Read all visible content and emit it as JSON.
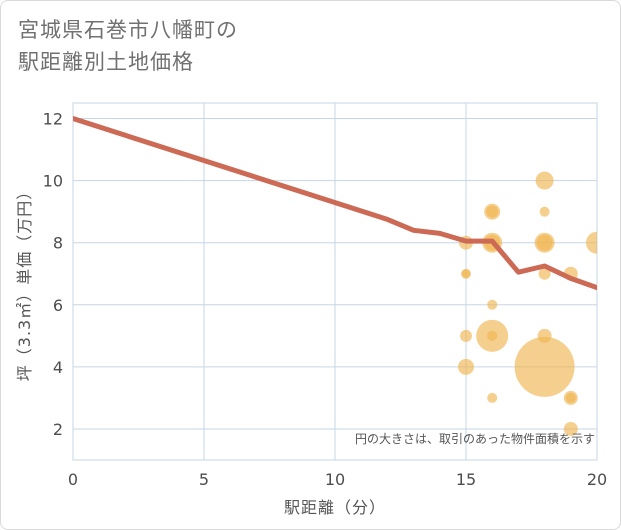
{
  "title_line1": "宮城県石巻市八幡町の",
  "title_line2": "駅距離別土地価格",
  "chart_data": {
    "type": "scatter",
    "xlabel": "駅距離（分）",
    "ylabel": "坪（3.3㎡）単価（万円）",
    "xlim": [
      0,
      20
    ],
    "ylim": [
      1,
      12.5
    ],
    "xticks": [
      0,
      5,
      10,
      15,
      20
    ],
    "yticks": [
      2,
      4,
      6,
      8,
      10,
      12
    ],
    "xtick_labels": [
      "0",
      "5",
      "10",
      "15",
      "20"
    ],
    "ytick_labels": [
      "2",
      "4",
      "6",
      "8",
      "10",
      "12"
    ],
    "annotation": "円の大きさは、取引のあった物件面積を示す",
    "colors": {
      "bubble": "#f0b552",
      "line": "#cc6a55",
      "grid": "#c6d6e4",
      "axis_text": "#4d4d4d"
    },
    "trend_line": {
      "x": [
        0,
        12,
        13,
        14,
        15,
        16,
        17,
        18,
        19,
        20
      ],
      "y": [
        12.0,
        8.75,
        8.4,
        8.3,
        8.05,
        8.05,
        7.05,
        7.25,
        6.85,
        6.55
      ]
    },
    "bubbles": [
      {
        "x": 15,
        "y": 8.0,
        "size": 7
      },
      {
        "x": 15,
        "y": 7.0,
        "size": 5
      },
      {
        "x": 15,
        "y": 7.0,
        "size": 4
      },
      {
        "x": 15,
        "y": 5.0,
        "size": 6
      },
      {
        "x": 15,
        "y": 4.0,
        "size": 8
      },
      {
        "x": 16,
        "y": 9.0,
        "size": 8
      },
      {
        "x": 16,
        "y": 9.0,
        "size": 6
      },
      {
        "x": 16,
        "y": 8.0,
        "size": 10
      },
      {
        "x": 16,
        "y": 8.0,
        "size": 8
      },
      {
        "x": 16,
        "y": 6.0,
        "size": 5
      },
      {
        "x": 16,
        "y": 5.0,
        "size": 16
      },
      {
        "x": 16,
        "y": 5.0,
        "size": 5
      },
      {
        "x": 16,
        "y": 3.0,
        "size": 5
      },
      {
        "x": 18,
        "y": 10.0,
        "size": 9
      },
      {
        "x": 18,
        "y": 9.0,
        "size": 5
      },
      {
        "x": 18,
        "y": 8.0,
        "size": 10
      },
      {
        "x": 18,
        "y": 8.0,
        "size": 8
      },
      {
        "x": 18,
        "y": 7.0,
        "size": 6
      },
      {
        "x": 18,
        "y": 5.0,
        "size": 7
      },
      {
        "x": 18,
        "y": 4.0,
        "size": 30
      },
      {
        "x": 19,
        "y": 7.0,
        "size": 7
      },
      {
        "x": 19,
        "y": 3.0,
        "size": 7
      },
      {
        "x": 19,
        "y": 3.0,
        "size": 5
      },
      {
        "x": 19,
        "y": 2.0,
        "size": 7
      },
      {
        "x": 20,
        "y": 8.0,
        "size": 11
      }
    ]
  }
}
